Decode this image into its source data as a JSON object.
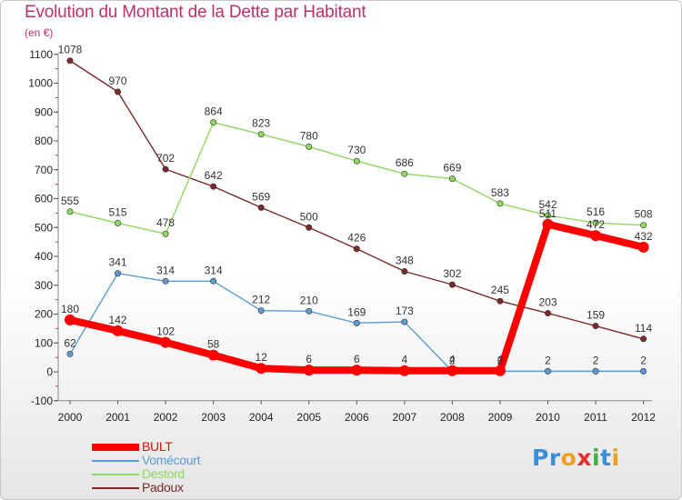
{
  "title": "Evolution du Montant de la Dette par Habitant",
  "subtitle": "(en €)",
  "logo": {
    "text": "Proxiti",
    "letters": [
      {
        "ch": "P",
        "color": "#3a8fd8"
      },
      {
        "ch": "r",
        "color": "#3a8fd8"
      },
      {
        "ch": "o",
        "color": "#f0a020"
      },
      {
        "ch": "x",
        "color": "#e53030"
      },
      {
        "ch": "i",
        "color": "#43b043"
      },
      {
        "ch": "t",
        "color": "#3a8fd8"
      },
      {
        "ch": "i",
        "color": "#f0a020"
      }
    ]
  },
  "chart_data": {
    "type": "line",
    "title": "Evolution du Montant de la Dette par Habitant",
    "subtitle": "(en €)",
    "xlabel": "",
    "ylabel": "",
    "ylim": [
      -100,
      1100
    ],
    "yticks": [
      -100,
      0,
      100,
      200,
      300,
      400,
      500,
      600,
      700,
      800,
      900,
      1000,
      1100
    ],
    "x": [
      "2000",
      "2001",
      "2002",
      "2003",
      "2004",
      "2005",
      "2006",
      "2007",
      "2008",
      "2009",
      "2010",
      "2011",
      "2012"
    ],
    "grid": false,
    "legend_position": "bottom-left",
    "series": [
      {
        "name": "BULT",
        "color": "#ff0000",
        "values": [
          180,
          142,
          102,
          58,
          12,
          6,
          6,
          4,
          4,
          4,
          511,
          472,
          432
        ]
      },
      {
        "name": "Vomécourt",
        "color": "#5b9bd5",
        "values": [
          62,
          341,
          314,
          314,
          212,
          210,
          169,
          173,
          2,
          2,
          2,
          2,
          2
        ]
      },
      {
        "name": "Destord",
        "color": "#8fd860",
        "values": [
          555,
          515,
          478,
          864,
          823,
          780,
          730,
          686,
          669,
          583,
          542,
          516,
          508
        ]
      },
      {
        "name": "Padoux",
        "color": "#7a2a2a",
        "values": [
          1078,
          970,
          702,
          642,
          569,
          500,
          426,
          348,
          302,
          245,
          203,
          159,
          114
        ]
      }
    ],
    "data_labels": [
      {
        "series": "BULT",
        "labels": [
          "180",
          "142",
          "102",
          "58",
          "12",
          "6",
          "6",
          "4",
          "4",
          "4",
          "511",
          "472",
          "432"
        ]
      },
      {
        "series": "Vomécourt",
        "labels": [
          "62",
          "341",
          "314",
          "314",
          "212",
          "210",
          "169",
          "173",
          "2",
          "2",
          "2",
          "2",
          "2"
        ]
      },
      {
        "series": "Destord",
        "labels": [
          "555",
          "515",
          "478",
          "864",
          "823",
          "780",
          "730",
          "686",
          "669",
          "583",
          "542",
          "516",
          "508"
        ]
      },
      {
        "series": "Padoux",
        "labels": [
          "1078",
          "970",
          "702",
          "642",
          "569",
          "500",
          "426",
          "348",
          "302",
          "245",
          "203",
          "159",
          "114"
        ]
      }
    ]
  }
}
